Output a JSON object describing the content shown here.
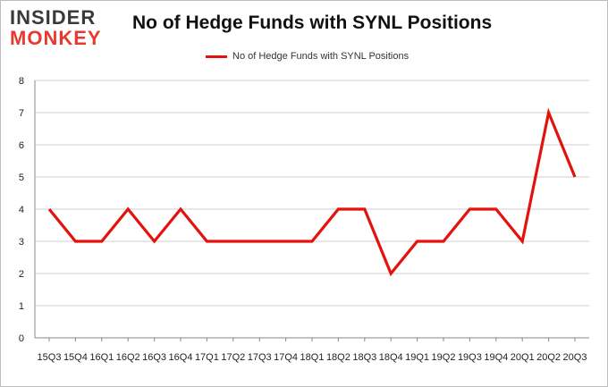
{
  "logo": {
    "line1": "INSIDER",
    "line2": "MONKEY"
  },
  "colors": {
    "line": "#e4120c",
    "grid": "#cfcfcf",
    "axis": "#888888",
    "logo_red": "#e53b2f"
  },
  "chart_data": {
    "type": "line",
    "title": "No of Hedge Funds with SYNL Positions",
    "xlabel": "",
    "ylabel": "",
    "ylim": [
      0,
      8
    ],
    "yticks": [
      0,
      1,
      2,
      3,
      4,
      5,
      6,
      7,
      8
    ],
    "grid": true,
    "legend_position": "top-center",
    "categories": [
      "15Q3",
      "15Q4",
      "16Q1",
      "16Q2",
      "16Q3",
      "16Q4",
      "17Q1",
      "17Q2",
      "17Q3",
      "17Q4",
      "18Q1",
      "18Q2",
      "18Q3",
      "18Q4",
      "19Q1",
      "19Q2",
      "19Q3",
      "19Q4",
      "20Q1",
      "20Q2",
      "20Q3"
    ],
    "series": [
      {
        "name": "No of Hedge Funds with SYNL Positions",
        "values": [
          4,
          3,
          3,
          4,
          3,
          4,
          3,
          3,
          3,
          3,
          3,
          4,
          4,
          2,
          3,
          3,
          4,
          4,
          3,
          7,
          5
        ]
      }
    ]
  }
}
